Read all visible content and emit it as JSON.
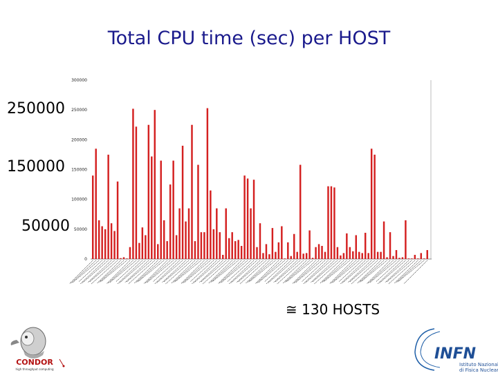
{
  "title": "Total CPU time (sec) per HOST",
  "annotations": {
    "label_250000": "250000",
    "label_150000": "150000",
    "label_50000": "50000",
    "hosts_note": "≅ 130 HOSTS"
  },
  "logos": {
    "condor_text": "CONDOR",
    "condor_sub": "high throughput computing",
    "infn_text": "INFN",
    "infn_sub1": "Istituto Nazionale",
    "infn_sub2": "di Fisica Nucleare"
  },
  "colors": {
    "bar": "#d42020",
    "title": "#1a1a8c"
  },
  "chart_data": {
    "type": "bar",
    "title": "Total CPU time (sec) per HOST",
    "ylim": [
      0,
      300000
    ],
    "yticks": [
      "0",
      "50000",
      "100000",
      "150000",
      "200000",
      "250000",
      "300000"
    ],
    "grid": false,
    "values": [
      140000,
      185000,
      65000,
      55000,
      50000,
      175000,
      60000,
      47000,
      130000,
      1500,
      3000,
      1000,
      20000,
      252000,
      222000,
      27000,
      53000,
      40000,
      225000,
      172000,
      250000,
      25000,
      165000,
      65000,
      30000,
      125000,
      165000,
      40000,
      85000,
      190000,
      63000,
      85000,
      225000,
      30000,
      158000,
      45000,
      45000,
      253000,
      115000,
      50000,
      85000,
      45000,
      7000,
      85000,
      35000,
      45000,
      30000,
      32000,
      22000,
      140000,
      135000,
      85000,
      133000,
      20000,
      60000,
      10000,
      25000,
      8000,
      52000,
      12000,
      28000,
      55000,
      1000,
      28000,
      5000,
      42000,
      12000,
      158000,
      9000,
      10000,
      48000,
      2000,
      20000,
      25000,
      22000,
      12000,
      122000,
      122000,
      120000,
      20000,
      6000,
      10000,
      43000,
      20000,
      13000,
      40000,
      12000,
      10000,
      44000,
      10000,
      185000,
      175000,
      12000,
      12000,
      63000,
      3000,
      45000,
      5000,
      15000,
      2000,
      3000,
      65000,
      1000,
      1000,
      7000,
      1000,
      10000,
      1000,
      15000
    ],
    "note": "≅ 130 HOSTS"
  }
}
